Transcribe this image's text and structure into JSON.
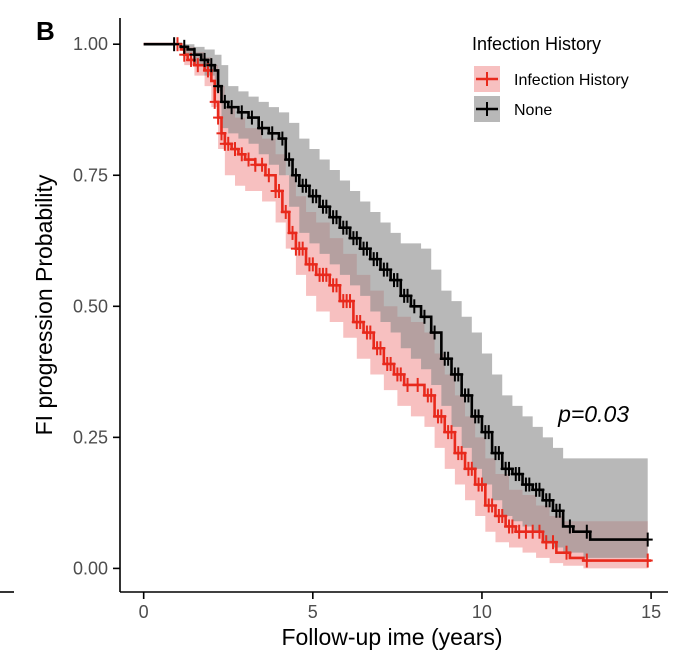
{
  "panel_label": "B",
  "colors": {
    "infection": "#e8291c",
    "infection_band": "#f08c8c",
    "none": "#000000",
    "none_band": "#8c8c8c",
    "axis": "#000000",
    "tick_text": "#4d4d4d"
  },
  "chart_data": {
    "type": "line",
    "subtype": "kaplan-meier",
    "title": "",
    "xlabel": "Follow-up ime (years)",
    "ylabel": "FI progression Probability",
    "xlim": [
      -0.7,
      15.5
    ],
    "ylim": [
      -0.045,
      1.05
    ],
    "xticks": [
      0,
      5,
      10,
      15
    ],
    "xtick_labels": [
      "0",
      "5",
      "10",
      "15"
    ],
    "yticks": [
      0,
      0.25,
      0.5,
      0.75,
      1.0
    ],
    "ytick_labels": [
      "0.00",
      "0.25",
      "0.50",
      "0.75",
      "1.00"
    ],
    "annotation": "p=0.03",
    "annotation_position": [
      13.3,
      0.295
    ],
    "legend": {
      "title": "Infection History",
      "position": "top-right",
      "entries": [
        "Infection History",
        "None"
      ]
    },
    "series": [
      {
        "name": "Infection History",
        "color": "#e8291c",
        "points": [
          [
            0,
            1.0
          ],
          [
            1.0,
            1.0
          ],
          [
            1.1,
            0.99
          ],
          [
            1.2,
            0.98
          ],
          [
            1.3,
            0.97
          ],
          [
            1.5,
            0.96
          ],
          [
            1.8,
            0.95
          ],
          [
            2.0,
            0.93
          ],
          [
            2.1,
            0.89
          ],
          [
            2.2,
            0.86
          ],
          [
            2.3,
            0.83
          ],
          [
            2.4,
            0.81
          ],
          [
            2.6,
            0.8
          ],
          [
            2.8,
            0.79
          ],
          [
            3.0,
            0.78
          ],
          [
            3.3,
            0.77
          ],
          [
            3.6,
            0.75
          ],
          [
            3.9,
            0.72
          ],
          [
            4.1,
            0.68
          ],
          [
            4.3,
            0.64
          ],
          [
            4.5,
            0.61
          ],
          [
            4.8,
            0.58
          ],
          [
            5.1,
            0.56
          ],
          [
            5.5,
            0.54
          ],
          [
            5.8,
            0.51
          ],
          [
            6.2,
            0.47
          ],
          [
            6.5,
            0.45
          ],
          [
            6.8,
            0.42
          ],
          [
            7.1,
            0.39
          ],
          [
            7.4,
            0.37
          ],
          [
            7.7,
            0.35
          ],
          [
            8.0,
            0.35
          ],
          [
            8.3,
            0.33
          ],
          [
            8.6,
            0.29
          ],
          [
            8.9,
            0.26
          ],
          [
            9.2,
            0.22
          ],
          [
            9.5,
            0.19
          ],
          [
            9.8,
            0.16
          ],
          [
            10.1,
            0.12
          ],
          [
            10.4,
            0.1
          ],
          [
            10.7,
            0.08
          ],
          [
            11.0,
            0.07
          ],
          [
            11.4,
            0.07
          ],
          [
            11.8,
            0.05
          ],
          [
            12.2,
            0.03
          ],
          [
            12.6,
            0.02
          ],
          [
            13.0,
            0.015
          ],
          [
            14.0,
            0.015
          ],
          [
            15.0,
            0.015
          ]
        ],
        "band_upper": [
          [
            0,
            1.0
          ],
          [
            1.0,
            1.0
          ],
          [
            1.2,
            0.995
          ],
          [
            1.5,
            0.985
          ],
          [
            1.8,
            0.975
          ],
          [
            2.0,
            0.96
          ],
          [
            2.2,
            0.92
          ],
          [
            2.4,
            0.88
          ],
          [
            2.7,
            0.86
          ],
          [
            3.0,
            0.84
          ],
          [
            3.5,
            0.82
          ],
          [
            3.9,
            0.79
          ],
          [
            4.2,
            0.75
          ],
          [
            4.5,
            0.71
          ],
          [
            4.8,
            0.68
          ],
          [
            5.1,
            0.66
          ],
          [
            5.5,
            0.63
          ],
          [
            5.9,
            0.6
          ],
          [
            6.3,
            0.56
          ],
          [
            6.7,
            0.53
          ],
          [
            7.1,
            0.5
          ],
          [
            7.5,
            0.48
          ],
          [
            7.9,
            0.47
          ],
          [
            8.3,
            0.45
          ],
          [
            8.6,
            0.41
          ],
          [
            8.9,
            0.37
          ],
          [
            9.2,
            0.33
          ],
          [
            9.5,
            0.29
          ],
          [
            9.8,
            0.25
          ],
          [
            10.1,
            0.21
          ],
          [
            10.4,
            0.18
          ],
          [
            10.8,
            0.15
          ],
          [
            11.2,
            0.14
          ],
          [
            11.6,
            0.12
          ],
          [
            12.0,
            0.1
          ],
          [
            12.4,
            0.09
          ],
          [
            13.0,
            0.09
          ],
          [
            14.0,
            0.09
          ],
          [
            14.9,
            0.09
          ]
        ],
        "band_lower": [
          [
            0,
            1.0
          ],
          [
            1.0,
            1.0
          ],
          [
            1.2,
            0.96
          ],
          [
            1.5,
            0.94
          ],
          [
            1.8,
            0.92
          ],
          [
            2.0,
            0.88
          ],
          [
            2.2,
            0.8
          ],
          [
            2.4,
            0.75
          ],
          [
            2.7,
            0.73
          ],
          [
            3.0,
            0.72
          ],
          [
            3.5,
            0.7
          ],
          [
            3.9,
            0.66
          ],
          [
            4.2,
            0.61
          ],
          [
            4.5,
            0.56
          ],
          [
            4.8,
            0.52
          ],
          [
            5.1,
            0.49
          ],
          [
            5.5,
            0.47
          ],
          [
            5.9,
            0.44
          ],
          [
            6.3,
            0.4
          ],
          [
            6.7,
            0.37
          ],
          [
            7.1,
            0.34
          ],
          [
            7.5,
            0.31
          ],
          [
            7.9,
            0.29
          ],
          [
            8.3,
            0.27
          ],
          [
            8.6,
            0.23
          ],
          [
            8.9,
            0.19
          ],
          [
            9.2,
            0.16
          ],
          [
            9.5,
            0.13
          ],
          [
            9.8,
            0.1
          ],
          [
            10.1,
            0.07
          ],
          [
            10.4,
            0.05
          ],
          [
            10.8,
            0.04
          ],
          [
            11.2,
            0.03
          ],
          [
            11.6,
            0.02
          ],
          [
            12.0,
            0.01
          ],
          [
            12.4,
            0.005
          ],
          [
            13.0,
            0.0
          ],
          [
            14.0,
            0.0
          ],
          [
            14.9,
            0.0
          ]
        ],
        "censor_x": [
          1.0,
          1.2,
          1.4,
          1.6,
          1.9,
          2.1,
          2.2,
          2.3,
          2.4,
          2.5,
          2.7,
          2.9,
          3.1,
          3.3,
          3.5,
          3.7,
          3.9,
          4.0,
          4.2,
          4.4,
          4.5,
          4.6,
          4.7,
          4.9,
          5.0,
          5.2,
          5.3,
          5.4,
          5.6,
          5.7,
          5.9,
          6.0,
          6.1,
          6.3,
          6.4,
          6.6,
          6.7,
          6.9,
          7.0,
          7.2,
          7.3,
          7.5,
          7.6,
          7.8,
          8.1,
          8.4,
          8.5,
          8.7,
          8.8,
          9.0,
          9.1,
          9.3,
          9.4,
          9.6,
          9.7,
          9.9,
          10.0,
          10.2,
          10.3,
          10.5,
          10.6,
          10.8,
          10.9,
          11.1,
          11.3,
          11.5,
          11.7,
          11.9,
          12.1,
          12.5,
          13.1,
          14.9
        ]
      },
      {
        "name": "None",
        "color": "#000000",
        "points": [
          [
            0,
            1.0
          ],
          [
            0.9,
            1.0
          ],
          [
            1.1,
            0.995
          ],
          [
            1.3,
            0.99
          ],
          [
            1.5,
            0.98
          ],
          [
            1.7,
            0.97
          ],
          [
            1.9,
            0.96
          ],
          [
            2.1,
            0.95
          ],
          [
            2.2,
            0.92
          ],
          [
            2.3,
            0.89
          ],
          [
            2.5,
            0.88
          ],
          [
            2.8,
            0.87
          ],
          [
            3.1,
            0.86
          ],
          [
            3.4,
            0.84
          ],
          [
            3.7,
            0.83
          ],
          [
            4.0,
            0.82
          ],
          [
            4.2,
            0.78
          ],
          [
            4.4,
            0.75
          ],
          [
            4.6,
            0.73
          ],
          [
            4.9,
            0.71
          ],
          [
            5.2,
            0.69
          ],
          [
            5.5,
            0.67
          ],
          [
            5.8,
            0.65
          ],
          [
            6.1,
            0.63
          ],
          [
            6.4,
            0.61
          ],
          [
            6.7,
            0.59
          ],
          [
            7.0,
            0.57
          ],
          [
            7.3,
            0.55
          ],
          [
            7.6,
            0.52
          ],
          [
            7.9,
            0.5
          ],
          [
            8.2,
            0.48
          ],
          [
            8.5,
            0.45
          ],
          [
            8.8,
            0.4
          ],
          [
            9.1,
            0.37
          ],
          [
            9.4,
            0.33
          ],
          [
            9.7,
            0.29
          ],
          [
            10.0,
            0.26
          ],
          [
            10.3,
            0.22
          ],
          [
            10.6,
            0.19
          ],
          [
            10.9,
            0.18
          ],
          [
            11.2,
            0.16
          ],
          [
            11.5,
            0.15
          ],
          [
            11.8,
            0.13
          ],
          [
            12.1,
            0.11
          ],
          [
            12.4,
            0.08
          ],
          [
            12.7,
            0.07
          ],
          [
            13.2,
            0.055
          ],
          [
            14.0,
            0.055
          ],
          [
            14.9,
            0.055
          ]
        ],
        "band_upper": [
          [
            0,
            1.0
          ],
          [
            0.9,
            1.0
          ],
          [
            1.2,
            1.0
          ],
          [
            1.5,
            0.995
          ],
          [
            1.8,
            0.99
          ],
          [
            2.1,
            0.98
          ],
          [
            2.3,
            0.96
          ],
          [
            2.5,
            0.92
          ],
          [
            2.8,
            0.91
          ],
          [
            3.1,
            0.9
          ],
          [
            3.4,
            0.89
          ],
          [
            3.7,
            0.88
          ],
          [
            4.0,
            0.87
          ],
          [
            4.3,
            0.85
          ],
          [
            4.6,
            0.82
          ],
          [
            4.9,
            0.8
          ],
          [
            5.2,
            0.78
          ],
          [
            5.5,
            0.76
          ],
          [
            5.8,
            0.74
          ],
          [
            6.1,
            0.72
          ],
          [
            6.4,
            0.7
          ],
          [
            6.7,
            0.68
          ],
          [
            7.0,
            0.66
          ],
          [
            7.3,
            0.64
          ],
          [
            7.6,
            0.62
          ],
          [
            7.9,
            0.62
          ],
          [
            8.2,
            0.61
          ],
          [
            8.5,
            0.57
          ],
          [
            8.8,
            0.53
          ],
          [
            9.1,
            0.51
          ],
          [
            9.4,
            0.48
          ],
          [
            9.7,
            0.45
          ],
          [
            10.0,
            0.41
          ],
          [
            10.3,
            0.37
          ],
          [
            10.6,
            0.33
          ],
          [
            10.9,
            0.31
          ],
          [
            11.2,
            0.29
          ],
          [
            11.5,
            0.27
          ],
          [
            11.8,
            0.25
          ],
          [
            12.1,
            0.23
          ],
          [
            12.4,
            0.21
          ],
          [
            13.0,
            0.21
          ],
          [
            14.0,
            0.21
          ],
          [
            14.9,
            0.21
          ]
        ],
        "band_lower": [
          [
            0,
            1.0
          ],
          [
            0.9,
            1.0
          ],
          [
            1.2,
            0.98
          ],
          [
            1.5,
            0.96
          ],
          [
            1.8,
            0.94
          ],
          [
            2.1,
            0.91
          ],
          [
            2.3,
            0.84
          ],
          [
            2.5,
            0.83
          ],
          [
            2.8,
            0.82
          ],
          [
            3.1,
            0.81
          ],
          [
            3.4,
            0.79
          ],
          [
            3.7,
            0.77
          ],
          [
            4.0,
            0.75
          ],
          [
            4.3,
            0.69
          ],
          [
            4.6,
            0.64
          ],
          [
            4.9,
            0.62
          ],
          [
            5.2,
            0.6
          ],
          [
            5.5,
            0.58
          ],
          [
            5.8,
            0.56
          ],
          [
            6.1,
            0.54
          ],
          [
            6.4,
            0.52
          ],
          [
            6.7,
            0.49
          ],
          [
            7.0,
            0.47
          ],
          [
            7.3,
            0.45
          ],
          [
            7.6,
            0.42
          ],
          [
            7.9,
            0.4
          ],
          [
            8.2,
            0.38
          ],
          [
            8.5,
            0.35
          ],
          [
            8.8,
            0.31
          ],
          [
            9.1,
            0.27
          ],
          [
            9.4,
            0.23
          ],
          [
            9.7,
            0.19
          ],
          [
            10.0,
            0.16
          ],
          [
            10.3,
            0.13
          ],
          [
            10.6,
            0.1
          ],
          [
            10.9,
            0.09
          ],
          [
            11.2,
            0.08
          ],
          [
            11.5,
            0.07
          ],
          [
            11.8,
            0.05
          ],
          [
            12.1,
            0.04
          ],
          [
            12.4,
            0.03
          ],
          [
            13.0,
            0.02
          ],
          [
            14.0,
            0.02
          ],
          [
            14.9,
            0.02
          ]
        ],
        "censor_x": [
          0.9,
          1.2,
          1.5,
          1.8,
          2.0,
          2.2,
          2.4,
          2.6,
          2.9,
          3.2,
          3.5,
          3.8,
          4.1,
          4.3,
          4.5,
          4.7,
          4.8,
          5.0,
          5.1,
          5.3,
          5.4,
          5.6,
          5.7,
          5.9,
          6.0,
          6.2,
          6.3,
          6.5,
          6.6,
          6.8,
          6.9,
          7.1,
          7.2,
          7.4,
          7.5,
          7.7,
          7.8,
          8.0,
          8.3,
          8.6,
          8.9,
          9.0,
          9.2,
          9.3,
          9.5,
          9.6,
          9.8,
          9.9,
          10.1,
          10.2,
          10.4,
          10.5,
          10.7,
          10.8,
          11.0,
          11.1,
          11.3,
          11.4,
          11.6,
          11.7,
          11.9,
          12.0,
          12.2,
          12.3,
          12.6,
          13.1,
          14.9
        ]
      }
    ]
  }
}
